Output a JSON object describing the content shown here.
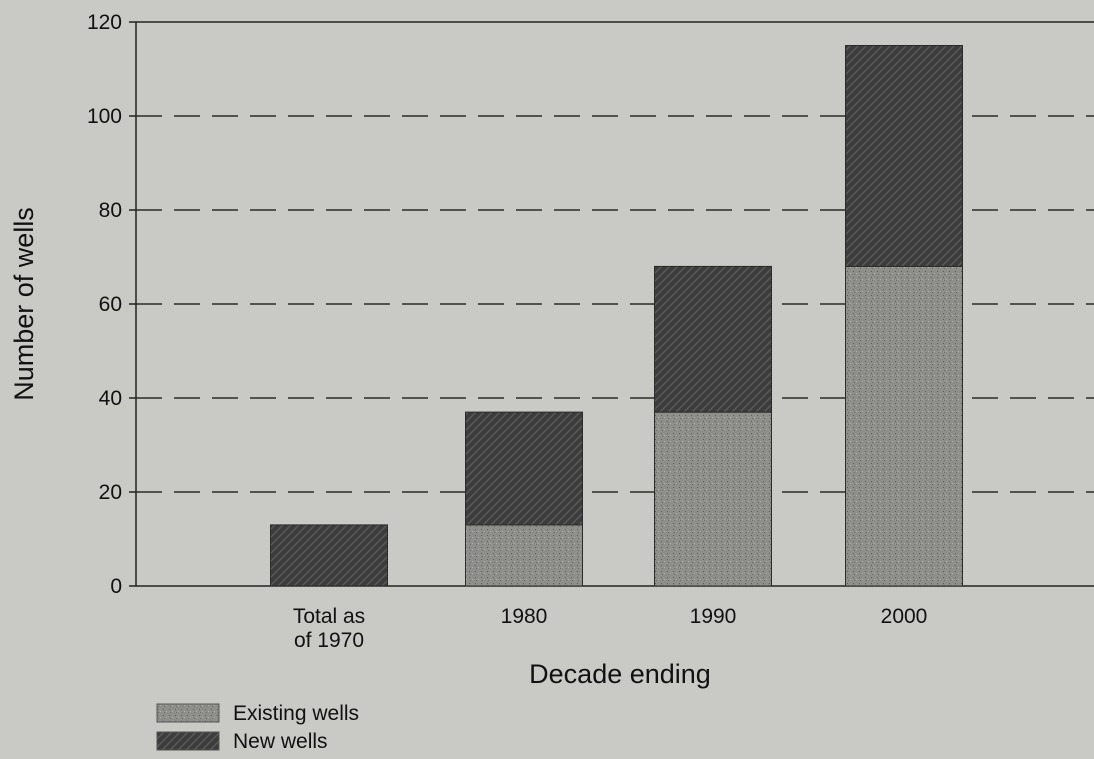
{
  "chart_data": {
    "type": "bar",
    "stacked": true,
    "categories": [
      "Total as of 1970",
      "1980",
      "1990",
      "2000"
    ],
    "category_label_lines": [
      [
        "Total as",
        "of 1970"
      ],
      [
        "1980"
      ],
      [
        "1990"
      ],
      [
        "2000"
      ]
    ],
    "series": [
      {
        "name": "Existing wells",
        "values": [
          0,
          13,
          37,
          68
        ],
        "color": "#8c8c88",
        "pattern": "stipple"
      },
      {
        "name": "New wells",
        "values": [
          13,
          24,
          31,
          47
        ],
        "color": "#3a3a3a",
        "pattern": "diagonal-hatch"
      }
    ],
    "title": "",
    "xlabel": "Decade ending",
    "ylabel": "Number of wells",
    "ylim": [
      0,
      120
    ],
    "yticks": [
      0,
      20,
      40,
      60,
      80,
      100,
      120
    ],
    "grid": "dashed horizontal",
    "legend": "bottom-left"
  }
}
